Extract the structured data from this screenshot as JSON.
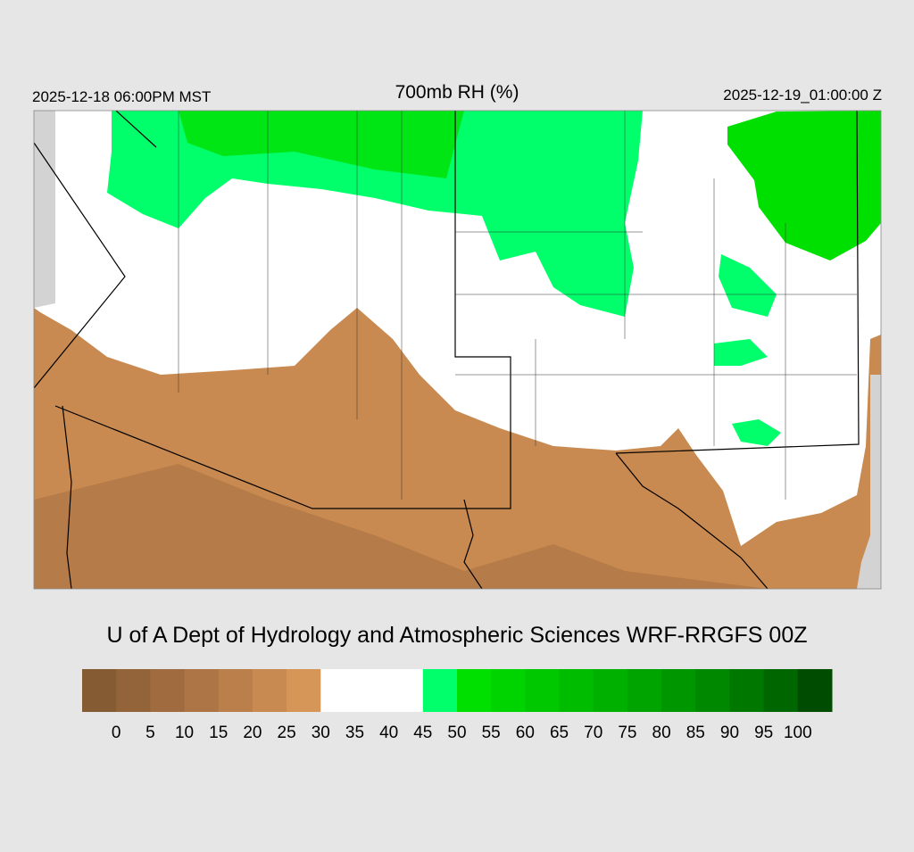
{
  "header": {
    "left": "2025-12-18 06:00PM MST",
    "title": "700mb RH (%)",
    "right": "2025-12-19_01:00:00 Z"
  },
  "footer": "U of A Dept of Hydrology and Atmospheric Sciences WRF-RRGFS 00Z",
  "colorbar": {
    "ticks": [
      0,
      5,
      10,
      15,
      20,
      25,
      30,
      35,
      40,
      45,
      50,
      55,
      60,
      65,
      70,
      75,
      80,
      85,
      90,
      95,
      100
    ],
    "colors": [
      "#855b33",
      "#93633a",
      "#a06b3f",
      "#ad7545",
      "#ba7f4a",
      "#c88a50",
      "#d59658",
      "#ffffff",
      "#ffffff",
      "#ffffff",
      "#00ff6a",
      "#00e000",
      "#00d400",
      "#00c800",
      "#00bc00",
      "#00b000",
      "#00a400",
      "#009600",
      "#008800",
      "#007800",
      "#006600",
      "#004c00"
    ]
  }
}
